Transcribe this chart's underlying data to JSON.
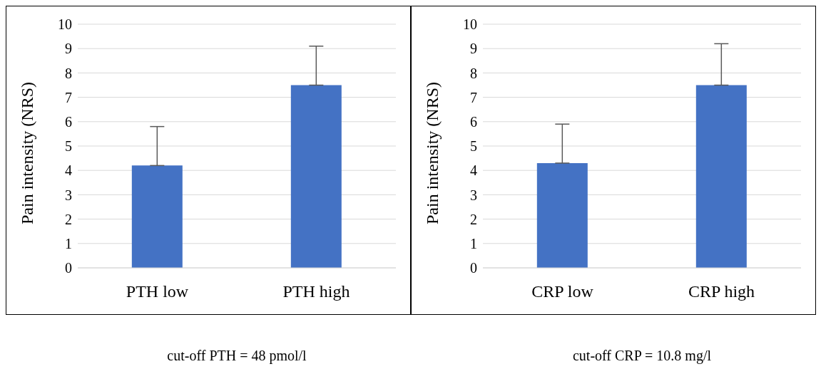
{
  "chart_data": [
    {
      "type": "bar",
      "categories": [
        "PTH low",
        "PTH high"
      ],
      "values": [
        4.2,
        7.5
      ],
      "color": "#4472c4",
      "errors": [
        [
          4.2,
          5.8
        ],
        [
          7.5,
          9.1
        ]
      ],
      "ylim": [
        0,
        10
      ],
      "yticks": [
        0,
        1,
        2,
        3,
        4,
        5,
        6,
        7,
        8,
        9,
        10
      ],
      "ylabel": "Pain intensity (NRS)",
      "grid": "y",
      "annotations": [
        "cut-off PTH = 48 pmol/l"
      ]
    },
    {
      "type": "bar",
      "categories": [
        "CRP low",
        "CRP high"
      ],
      "values": [
        4.3,
        7.5
      ],
      "color": "#4472c4",
      "errors": [
        [
          4.3,
          5.9
        ],
        [
          7.5,
          9.2
        ]
      ],
      "ylim": [
        0,
        10
      ],
      "yticks": [
        0,
        1,
        2,
        3,
        4,
        5,
        6,
        7,
        8,
        9,
        10
      ],
      "ylabel": "Pain intensity (NRS)",
      "grid": "y",
      "annotations": [
        "cut-off CRP = 10.8 mg/l"
      ]
    }
  ]
}
